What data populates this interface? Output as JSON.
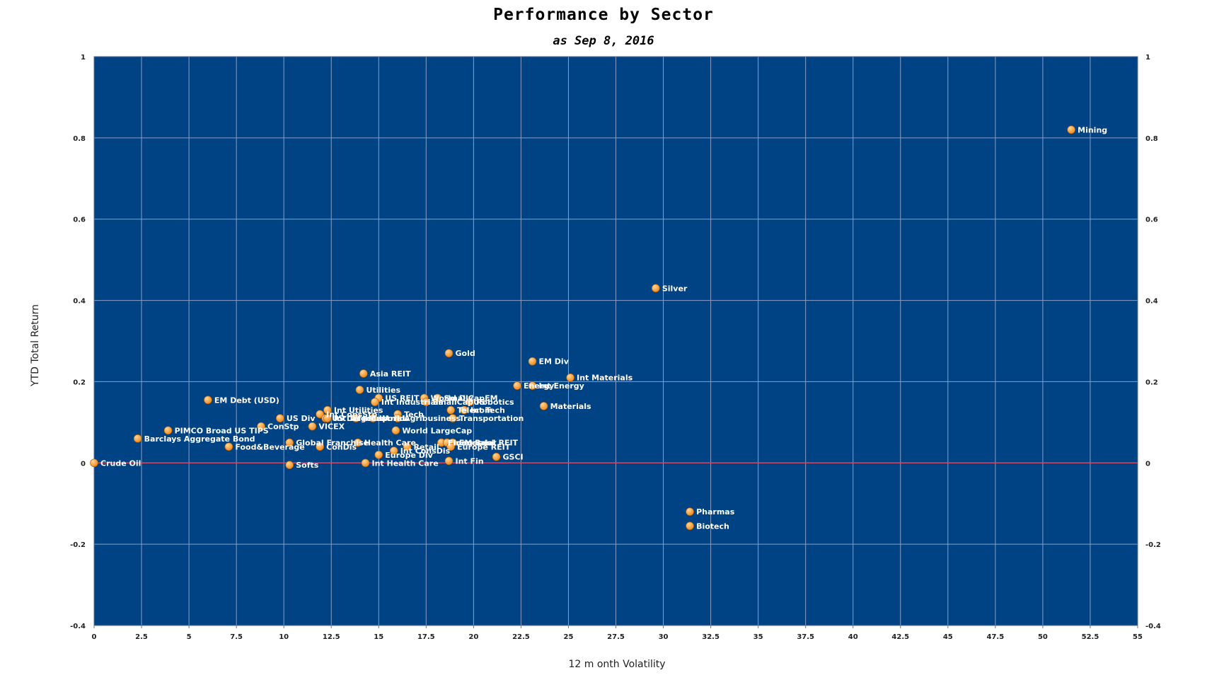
{
  "chart_data": {
    "type": "scatter",
    "title": "Performance by Sector",
    "subtitle": "as Sep 8, 2016",
    "xlabel": "12 m onth Volatility",
    "ylabel": "YTD Total Return",
    "xlim": [
      0,
      55
    ],
    "ylim": [
      -0.4,
      1
    ],
    "x_ticks": [
      0,
      2.5,
      5,
      7.5,
      10,
      12.5,
      15,
      17.5,
      20,
      22.5,
      25,
      27.5,
      30,
      32.5,
      35,
      37.5,
      40,
      42.5,
      45,
      47.5,
      50,
      52.5,
      55
    ],
    "x_tick_labels": [
      "0",
      "2.5",
      "5",
      "7.5",
      "10",
      "12.5",
      "15",
      "17.5",
      "20",
      "22.5",
      "25",
      "27.5",
      "30",
      "32.5",
      "35",
      "37.5",
      "40",
      "42.5",
      "45",
      "47.5",
      "50",
      "52.5",
      "55"
    ],
    "y_ticks": [
      -0.4,
      -0.2,
      0,
      0.2,
      0.4,
      0.6,
      0.8,
      1
    ],
    "y_tick_labels": [
      "-0.4",
      "-0.2",
      "0",
      "0.2",
      "0.4",
      "0.6",
      "0.8",
      "1"
    ],
    "grid": true,
    "colors": {
      "plot_bg": "#004385",
      "grid": "#8a9fc4",
      "zero_line": "#c84c6c",
      "marker": "#f08a1c",
      "marker_highlight": "#ffd79a",
      "label": "#ffffff"
    },
    "points": [
      {
        "label": "Mining",
        "x": 51.5,
        "y": 0.82
      },
      {
        "label": "Silver",
        "x": 29.6,
        "y": 0.43
      },
      {
        "label": "Gold",
        "x": 18.7,
        "y": 0.27
      },
      {
        "label": "EM Div",
        "x": 23.1,
        "y": 0.25
      },
      {
        "label": "Int Materials",
        "x": 25.1,
        "y": 0.21
      },
      {
        "label": "Energy",
        "x": 22.3,
        "y": 0.19
      },
      {
        "label": "Int Energy",
        "x": 23.1,
        "y": 0.19
      },
      {
        "label": "Robotics",
        "x": 19.8,
        "y": 0.15
      },
      {
        "label": "Materials",
        "x": 23.7,
        "y": 0.14
      },
      {
        "label": "SmallCapEM",
        "x": 18.1,
        "y": 0.16
      },
      {
        "label": "World Div",
        "x": 17.4,
        "y": 0.16
      },
      {
        "label": "US REIT",
        "x": 15.0,
        "y": 0.16
      },
      {
        "label": "SmallCapUS",
        "x": 17.5,
        "y": 0.15
      },
      {
        "label": "Int Industrials",
        "x": 14.8,
        "y": 0.15
      },
      {
        "label": "Tech",
        "x": 16.0,
        "y": 0.12
      },
      {
        "label": "Telecom",
        "x": 18.8,
        "y": 0.13
      },
      {
        "label": "Int Tech",
        "x": 19.5,
        "y": 0.13
      },
      {
        "label": "Transportation",
        "x": 18.9,
        "y": 0.11
      },
      {
        "label": "Agribusiness",
        "x": 16.0,
        "y": 0.11
      },
      {
        "label": "Asia REIT",
        "x": 14.2,
        "y": 0.22
      },
      {
        "label": "Utilities",
        "x": 14.0,
        "y": 0.18
      },
      {
        "label": "Int Utilities",
        "x": 12.3,
        "y": 0.13
      },
      {
        "label": "US Div",
        "x": 9.8,
        "y": 0.11
      },
      {
        "label": "Int ConsStp",
        "x": 11.9,
        "y": 0.12
      },
      {
        "label": "US LargeCap",
        "x": 12.2,
        "y": 0.11
      },
      {
        "label": "Industrials",
        "x": 13.8,
        "y": 0.11
      },
      {
        "label": "World",
        "x": 14.7,
        "y": 0.11
      },
      {
        "label": "ConStp",
        "x": 8.8,
        "y": 0.09
      },
      {
        "label": "VICEX",
        "x": 11.5,
        "y": 0.09
      },
      {
        "label": "Int Telecom",
        "x": 12.3,
        "y": 0.11
      },
      {
        "label": "EM Debt (USD)",
        "x": 6.0,
        "y": 0.155
      },
      {
        "label": "PIMCO Broad US TIPS",
        "x": 3.9,
        "y": 0.08
      },
      {
        "label": "Barclays Aggregate Bond",
        "x": 2.3,
        "y": 0.06
      },
      {
        "label": "Food&Beverage",
        "x": 7.1,
        "y": 0.04
      },
      {
        "label": "Global Franchise",
        "x": 10.3,
        "y": 0.05
      },
      {
        "label": "Crude Oil",
        "x": 0.0,
        "y": 0.0
      },
      {
        "label": "World LargeCap",
        "x": 15.9,
        "y": 0.08
      },
      {
        "label": "Financials",
        "x": 18.3,
        "y": 0.05
      },
      {
        "label": "Industrial REIT",
        "x": 18.6,
        "y": 0.05
      },
      {
        "label": "EM Bank",
        "x": 18.9,
        "y": 0.05
      },
      {
        "label": "Health Care",
        "x": 13.9,
        "y": 0.05
      },
      {
        "label": "Retail",
        "x": 16.5,
        "y": 0.04
      },
      {
        "label": "Europe REIT",
        "x": 18.8,
        "y": 0.04
      },
      {
        "label": "ConDis",
        "x": 11.9,
        "y": 0.04
      },
      {
        "label": "Int ConsDis",
        "x": 15.8,
        "y": 0.03
      },
      {
        "label": "Europe Div",
        "x": 15.0,
        "y": 0.02
      },
      {
        "label": "Int Health Care",
        "x": 14.3,
        "y": 0.0
      },
      {
        "label": "Int Fin",
        "x": 18.7,
        "y": 0.005
      },
      {
        "label": "GSCI",
        "x": 21.2,
        "y": 0.015
      },
      {
        "label": "Softs",
        "x": 10.3,
        "y": -0.005
      },
      {
        "label": "Pharmas",
        "x": 31.4,
        "y": -0.12
      },
      {
        "label": "Biotech",
        "x": 31.4,
        "y": -0.155
      }
    ]
  }
}
